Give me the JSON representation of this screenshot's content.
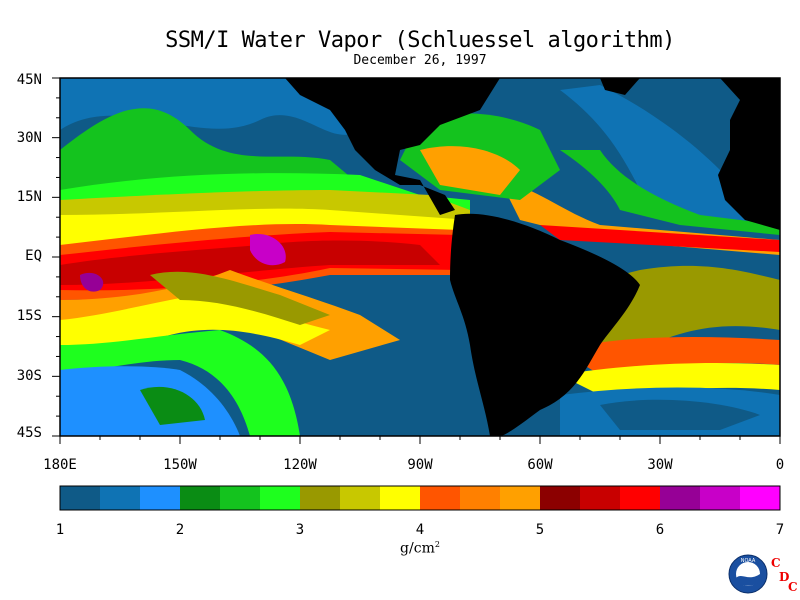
{
  "title": "SSM/I Water Vapor (Schluessel algorithm)",
  "subtitle": "December 26, 1997",
  "lat_labels": [
    "45N",
    "30N",
    "15N",
    "EQ",
    "15S",
    "30S",
    "45S"
  ],
  "lon_labels": [
    "180E",
    "150W",
    "120W",
    "90W",
    "60W",
    "30W",
    "0"
  ],
  "colorbar": {
    "labels": [
      "1",
      "2",
      "3",
      "4",
      "5",
      "6",
      "7"
    ],
    "unit": "g/cm",
    "unit_sup": "2",
    "colors": [
      "#0f5a87",
      "#0f73b4",
      "#1e90ff",
      "#0a8c14",
      "#14c31e",
      "#1eff1e",
      "#999900",
      "#c8c800",
      "#ffff00",
      "#ff5500",
      "#ff8000",
      "#ffa000",
      "#8c0000",
      "#c80000",
      "#ff0000",
      "#960096",
      "#c800c8",
      "#ff00ff"
    ]
  },
  "logo": {
    "name": "noaa-logo",
    "text": "NOAA"
  },
  "cdc_letters": [
    "C",
    "D",
    "C"
  ]
}
